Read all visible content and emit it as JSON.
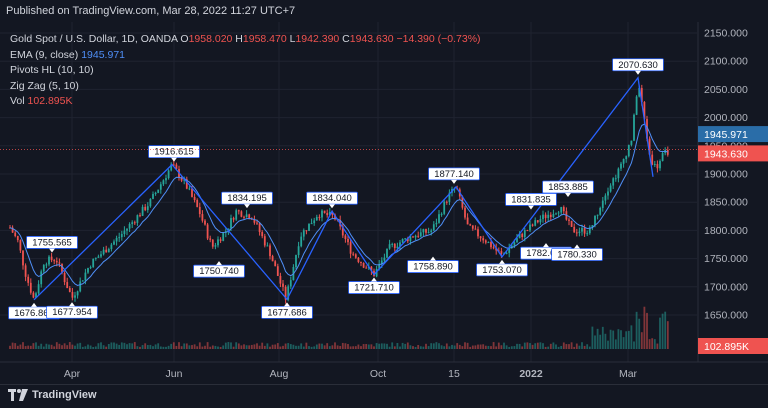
{
  "header": {
    "published": "Published on TradingView.com, Mar 28, 2022 11:27 UTC+7"
  },
  "legend": {
    "symbol": "Gold Spot / U.S. Dollar, 1D, OANDA",
    "o_label": "O",
    "o": "1958.020",
    "h_label": "H",
    "h": "1958.470",
    "l_label": "L",
    "l": "1942.390",
    "c_label": "C",
    "c": "1943.630",
    "change": "−14.390 (−0.73%)",
    "ema_label": "EMA (9, close)",
    "ema_value": "1945.971",
    "pivots_label": "Pivots HL (10, 10)",
    "zigzag_label": "Zig Zag (5, 10)",
    "vol_label": "Vol",
    "vol_value": "102.895K"
  },
  "footer": {
    "brand": "TradingView"
  },
  "colors": {
    "up": "#26a69a",
    "down": "#ef5350",
    "zigzag": "#2962ff",
    "ema": "#4f8ff7",
    "price_badge": "#ef5350",
    "ema_badge": "#2a6da8"
  },
  "chart_data": {
    "type": "candlestick",
    "y_axis_ticks": [
      "2150.000",
      "2100.000",
      "2050.000",
      "2000.000",
      "1950.000",
      "1900.000",
      "1850.000",
      "1800.000",
      "1750.000",
      "1700.000",
      "1650.000"
    ],
    "ylim": [
      1620,
      2170
    ],
    "x_axis_ticks": [
      "Apr",
      "Jun",
      "Aug",
      "Oct",
      "15",
      "2022",
      "Mar"
    ],
    "last_price": "1943.630",
    "ema_last": "1945.971",
    "volume_last": "102.895K",
    "zigzag_points": [
      {
        "label": "1676.866",
        "value": 1676.866,
        "kind": "low"
      },
      {
        "label": "1916.615",
        "value": 1916.615,
        "kind": "high"
      },
      {
        "label": "1677.686",
        "value": 1677.686,
        "kind": "low"
      },
      {
        "label": "1834.040",
        "value": 1834.04,
        "kind": "high"
      },
      {
        "label": "1721.710",
        "value": 1721.71,
        "kind": "low"
      },
      {
        "label": "1877.140",
        "value": 1877.14,
        "kind": "high"
      },
      {
        "label": "1753.070",
        "value": 1753.07,
        "kind": "low"
      },
      {
        "label": "2070.630",
        "value": 2070.63,
        "kind": "high"
      },
      {
        "label": "1895",
        "value": 1895,
        "kind": "low"
      }
    ],
    "pivot_labels": [
      {
        "label": "1755.565",
        "value": 1755.565,
        "kind": "high"
      },
      {
        "label": "1676.866",
        "value": 1676.866,
        "kind": "low"
      },
      {
        "label": "1677.954",
        "value": 1677.954,
        "kind": "low"
      },
      {
        "label": "1916.615",
        "value": 1916.615,
        "kind": "high"
      },
      {
        "label": "1750.740",
        "value": 1750.74,
        "kind": "low"
      },
      {
        "label": "1834.195",
        "value": 1834.195,
        "kind": "high"
      },
      {
        "label": "1677.686",
        "value": 1677.686,
        "kind": "low"
      },
      {
        "label": "1834.040",
        "value": 1834.04,
        "kind": "high"
      },
      {
        "label": "1721.710",
        "value": 1721.71,
        "kind": "low"
      },
      {
        "label": "1877.140",
        "value": 1877.14,
        "kind": "high"
      },
      {
        "label": "1758.890",
        "value": 1758.89,
        "kind": "low"
      },
      {
        "label": "1753.070",
        "value": 1753.07,
        "kind": "low"
      },
      {
        "label": "1831.835",
        "value": 1831.835,
        "kind": "high"
      },
      {
        "label": "1782.671",
        "value": 1782.671,
        "kind": "low"
      },
      {
        "label": "1853.885",
        "value": 1853.885,
        "kind": "high"
      },
      {
        "label": "1780.330",
        "value": 1780.33,
        "kind": "low"
      },
      {
        "label": "2070.630",
        "value": 2070.63,
        "kind": "high"
      }
    ]
  }
}
